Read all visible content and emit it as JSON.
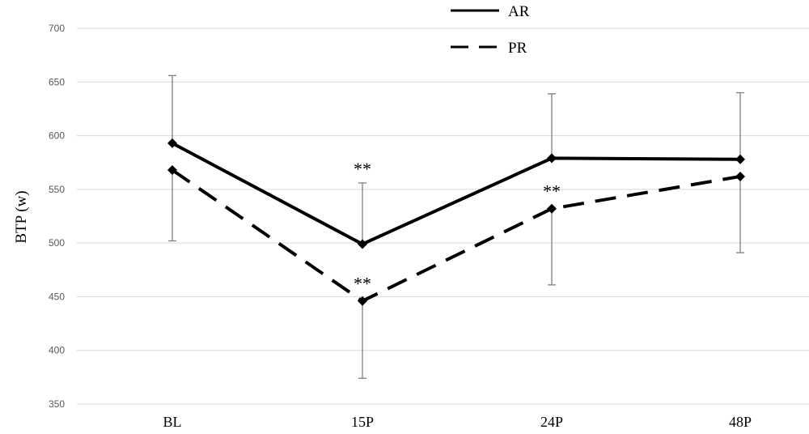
{
  "chart_data": {
    "type": "line",
    "categories": [
      "BL",
      "15P",
      "24P",
      "48P"
    ],
    "ylabel": "BTP (w)",
    "ylim": [
      350,
      700
    ],
    "yticks": [
      350,
      400,
      450,
      500,
      550,
      600,
      650,
      700
    ],
    "grid": true,
    "legend_position": "top-center",
    "series": [
      {
        "name": "AR",
        "style": "solid",
        "values": [
          593,
          499,
          579,
          578
        ],
        "error_bar_upper": [
          656,
          556,
          639,
          640
        ],
        "annotations": [
          "",
          "**",
          "",
          ""
        ]
      },
      {
        "name": "PR",
        "style": "dashed",
        "values": [
          568,
          446,
          532,
          562
        ],
        "error_bar_lower": [
          502,
          374,
          461,
          491
        ],
        "annotations": [
          "",
          "**",
          "**",
          ""
        ]
      }
    ],
    "colors": {
      "line": "#000000",
      "grid": "#d9d9d9",
      "error_bar": "#7f7f7f"
    }
  }
}
